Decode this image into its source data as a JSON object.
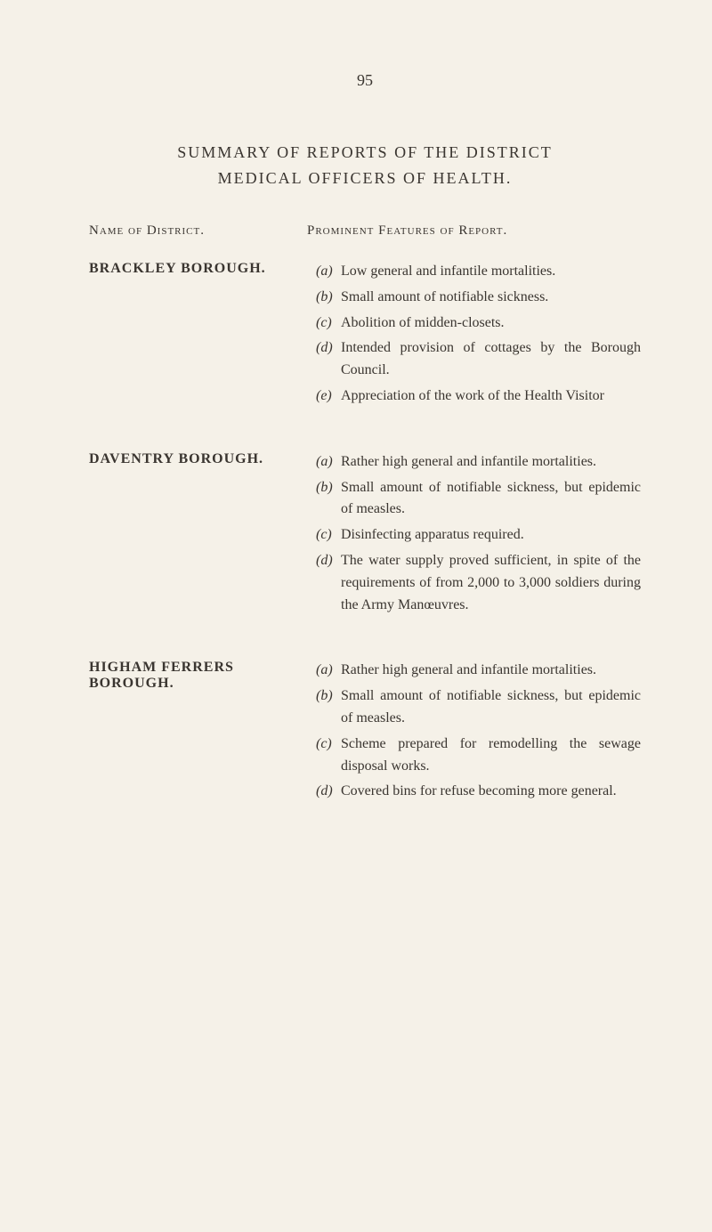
{
  "page_number": "95",
  "title_line1": "SUMMARY OF REPORTS OF THE DISTRICT",
  "title_line2": "MEDICAL OFFICERS OF HEALTH.",
  "header_left": "Name of District.",
  "header_right": "Prominent Features of Report.",
  "sections": [
    {
      "name": "BRACKLEY BOROUGH.",
      "items": [
        {
          "label": "(a)",
          "text": "Low general and infantile mortalities."
        },
        {
          "label": "(b)",
          "text": "Small amount of notifiable sickness."
        },
        {
          "label": "(c)",
          "text": "Abolition of midden-closets."
        },
        {
          "label": "(d)",
          "text": "Intended provision of cottages by the Borough Council."
        },
        {
          "label": "(e)",
          "text": "Appreciation of the work of the Health Visitor"
        }
      ]
    },
    {
      "name": "DAVENTRY BOROUGH.",
      "items": [
        {
          "label": "(a)",
          "text": "Rather high general and infantile mortalities."
        },
        {
          "label": "(b)",
          "text": "Small amount of notifiable sickness, but epidemic of measles."
        },
        {
          "label": "(c)",
          "text": "Disinfecting apparatus required."
        },
        {
          "label": "(d)",
          "text": "The water supply proved sufficient, in spite of the requirements of from 2,000 to 3,000 soldiers during the Army Manœuvres."
        }
      ]
    },
    {
      "name": "HIGHAM FERRERS BOROUGH.",
      "items": [
        {
          "label": "(a)",
          "text": "Rather high general and infantile mortalities."
        },
        {
          "label": "(b)",
          "text": "Small amount of notifiable sickness, but epidemic of measles."
        },
        {
          "label": "(c)",
          "text": "Scheme prepared for remodelling the sewage disposal works."
        },
        {
          "label": "(d)",
          "text": "Covered bins for refuse becoming more general."
        }
      ]
    }
  ]
}
